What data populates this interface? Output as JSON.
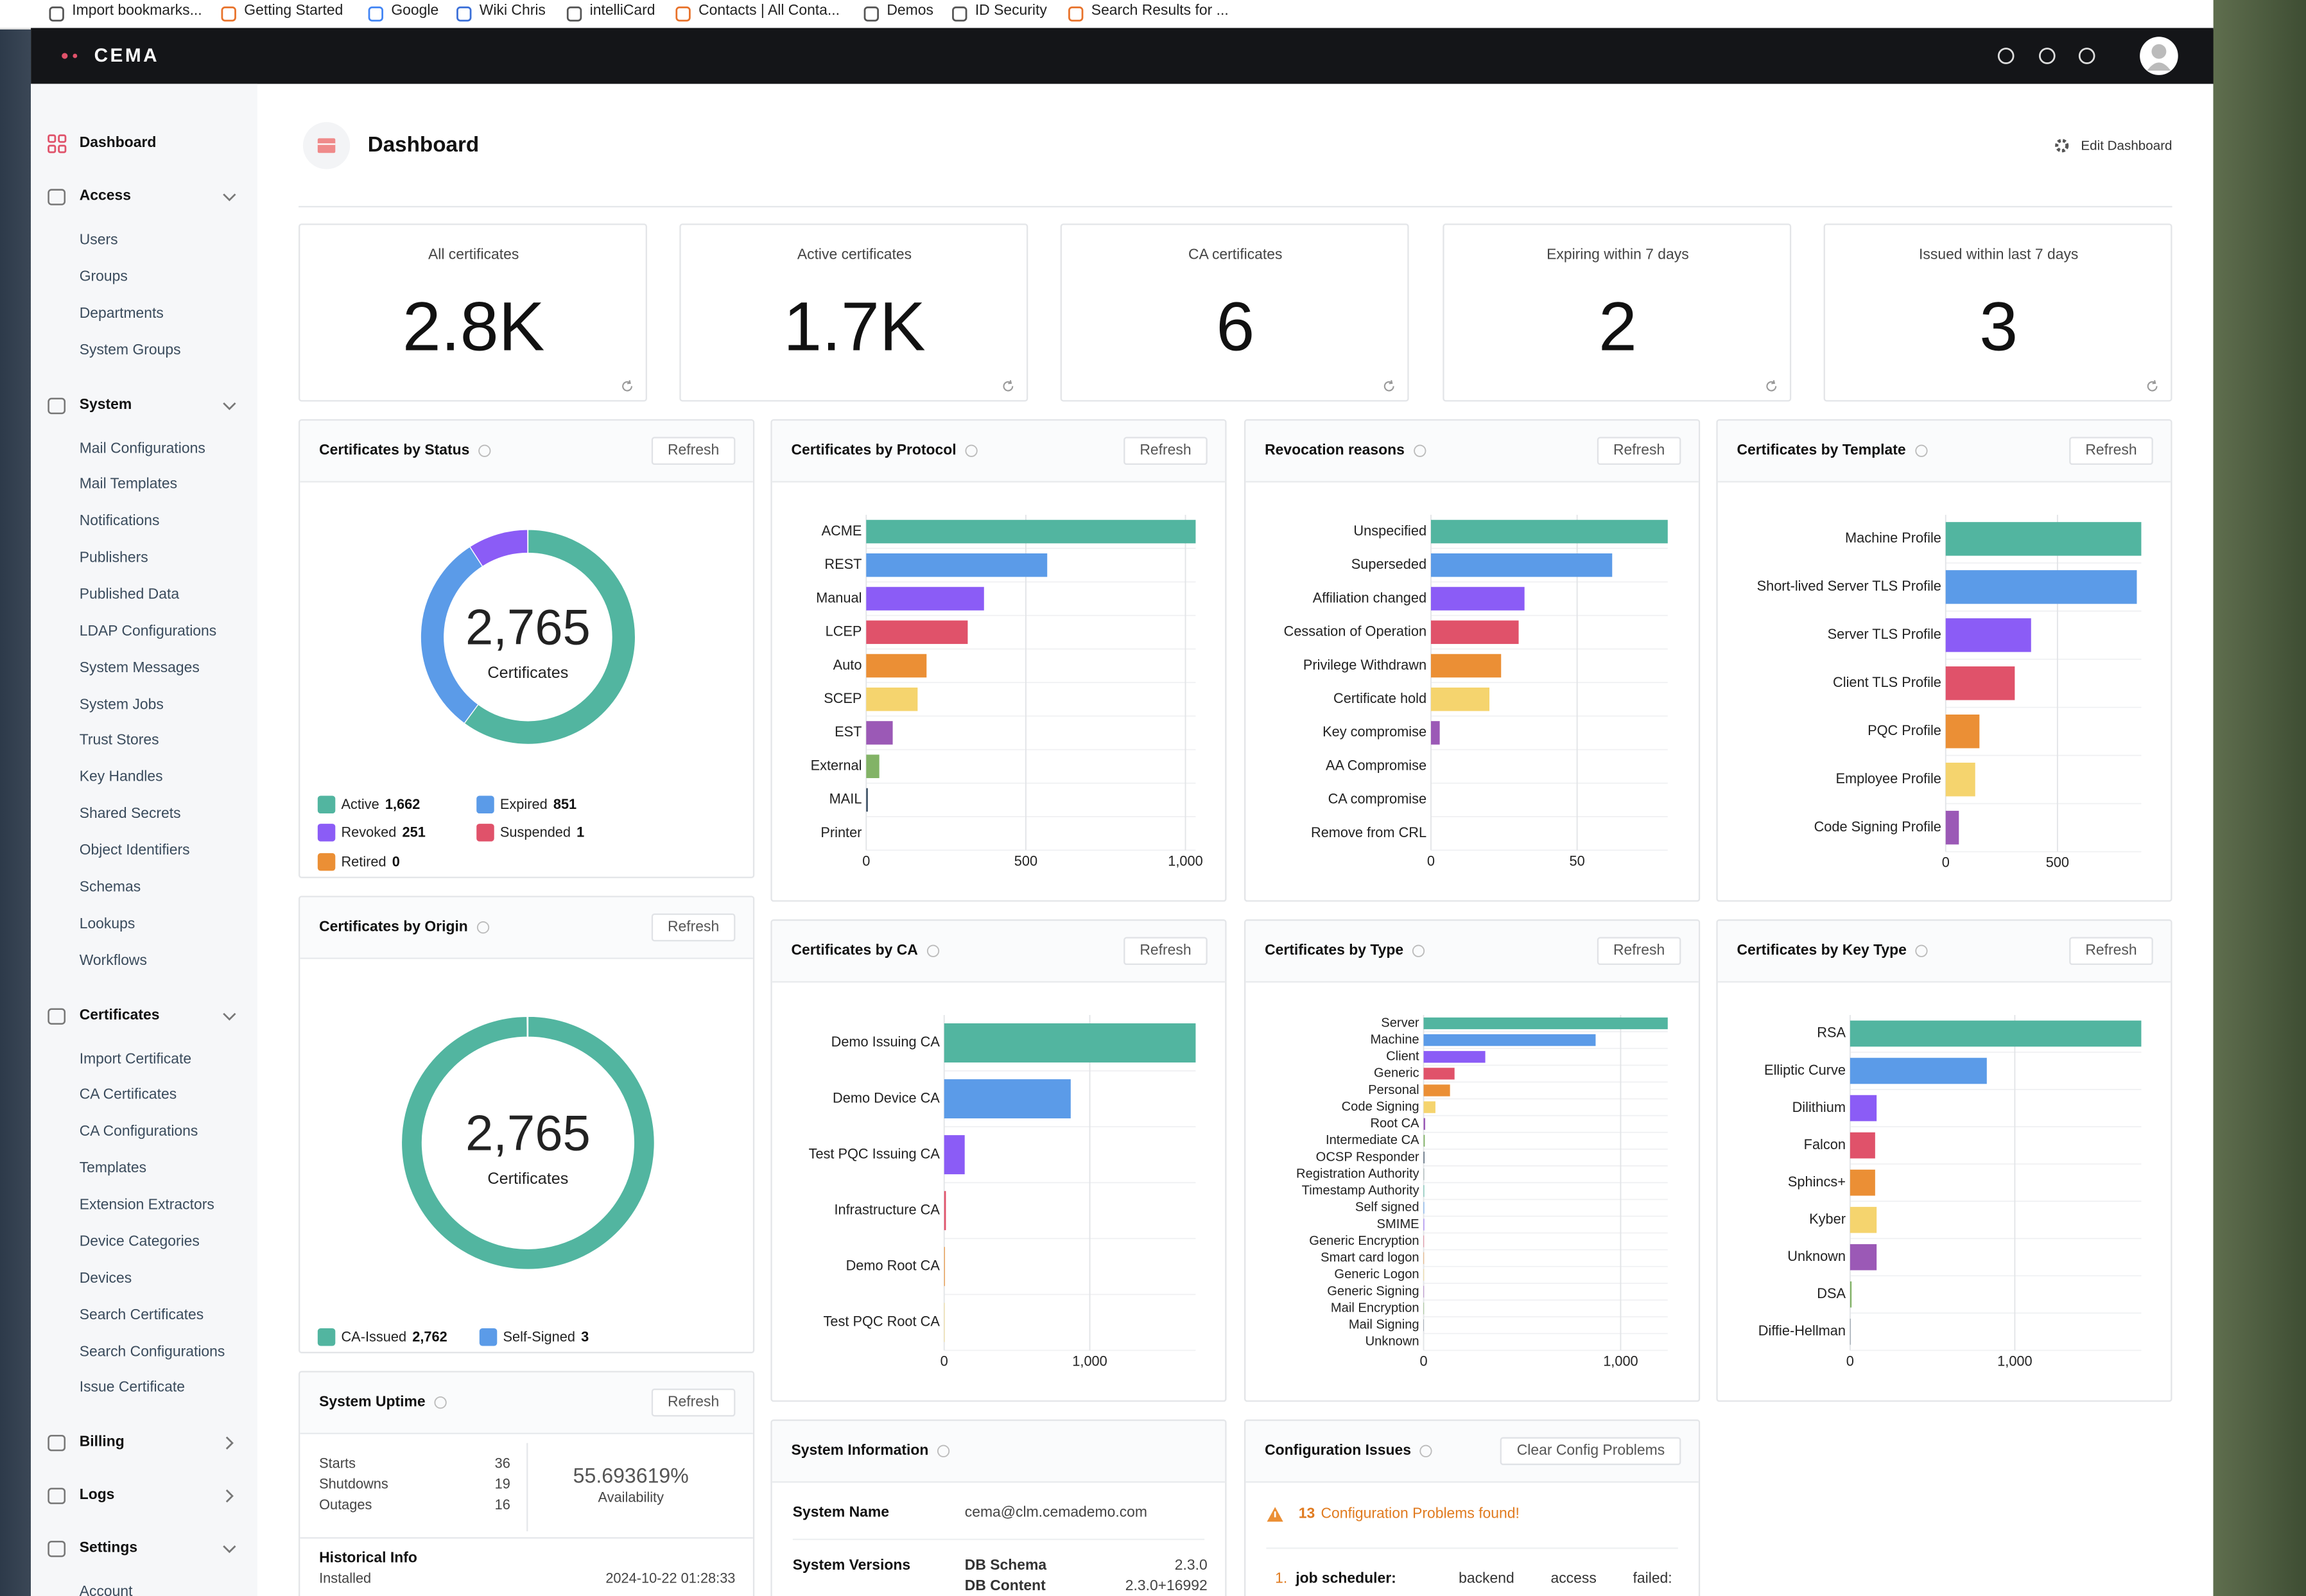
{
  "bookmarks": [
    "Import bookmarks...",
    "Getting Started",
    "Google",
    "Wiki Chris",
    "intelliCard",
    "Contacts | All Conta...",
    "Demos",
    "ID Security",
    "Search Results for ..."
  ],
  "app": {
    "brand": "CEMA"
  },
  "sidebar": {
    "home": "Dashboard",
    "sections": [
      {
        "title": "Access",
        "expanded": true,
        "items": [
          "Users",
          "Groups",
          "Departments",
          "System Groups"
        ]
      },
      {
        "title": "System",
        "expanded": true,
        "items": [
          "Mail Configurations",
          "Mail Templates",
          "Notifications",
          "Publishers",
          "Published Data",
          "LDAP Configurations",
          "System Messages",
          "System Jobs",
          "Trust Stores",
          "Key Handles",
          "Shared Secrets",
          "Object Identifiers",
          "Schemas",
          "Lookups",
          "Workflows"
        ]
      },
      {
        "title": "Certificates",
        "expanded": true,
        "items": [
          "Import Certificate",
          "CA Certificates",
          "CA Configurations",
          "Templates",
          "Extension Extractors",
          "Device Categories",
          "Devices",
          "Search Certificates",
          "Search Configurations",
          "Issue Certificate"
        ]
      },
      {
        "title": "Billing",
        "expanded": false,
        "items": []
      },
      {
        "title": "Logs",
        "expanded": false,
        "items": []
      },
      {
        "title": "Settings",
        "expanded": true,
        "items": [
          "Account"
        ]
      }
    ]
  },
  "header": {
    "title": "Dashboard",
    "edit": "Edit Dashboard"
  },
  "stats": [
    {
      "label": "All certificates",
      "value": "2.8K"
    },
    {
      "label": "Active certificates",
      "value": "1.7K"
    },
    {
      "label": "CA certificates",
      "value": 6
    },
    {
      "label": "Expiring within 7 days",
      "value": 2
    },
    {
      "label": "Issued within last 7 days",
      "value": 3
    }
  ],
  "refresh_label": "Refresh",
  "chart_data": [
    {
      "type": "pie",
      "title": "Certificates by Status",
      "categories": [
        "Active",
        "Expired",
        "Revoked",
        "Suspended",
        "Retired"
      ],
      "values": [
        1662,
        851,
        251,
        1,
        0
      ],
      "value_labels": [
        "1,662",
        "851",
        "251",
        "1",
        "0"
      ],
      "colors": [
        "#52b5a0",
        "#5b9be8",
        "#8b5cf6",
        "#e0526a",
        "#eb8f35"
      ],
      "total_label": "2,765",
      "center_text": "Certificates"
    },
    {
      "type": "bar",
      "title": "Certificates by Protocol",
      "categories": [
        "ACME",
        "REST",
        "Manual",
        "LCEP",
        "Auto",
        "SCEP",
        "EST",
        "External",
        "MAIL",
        "Printer"
      ],
      "values": [
        1032,
        567,
        369,
        318,
        189,
        161,
        83,
        41,
        5,
        0
      ],
      "colors": [
        "#52b5a0",
        "#5b9be8",
        "#8b5cf6",
        "#e0526a",
        "#eb8f35",
        "#f5d46e",
        "#9b59b6",
        "#82b366",
        "#34495e",
        "#95a5a6"
      ],
      "xlim": [
        0,
        1032
      ],
      "xticks": [
        0,
        500,
        {
          "value": 1000,
          "label": "1,000"
        }
      ],
      "grid": true
    },
    {
      "type": "bar",
      "title": "Revocation reasons",
      "categories": [
        "Unspecified",
        "Superseded",
        "Affiliation changed",
        "Cessation of Operation",
        "Privilege Withdrawn",
        "Certificate hold",
        "Key compromise",
        "AA Compromise",
        "CA compromise",
        "Remove from CRL"
      ],
      "values": [
        81,
        62,
        32,
        30,
        24,
        20,
        3,
        0,
        0,
        0
      ],
      "colors": [
        "#52b5a0",
        "#5b9be8",
        "#8b5cf6",
        "#e0526a",
        "#eb8f35",
        "#f5d46e",
        "#9b59b6",
        "#82b366",
        "#34495e",
        "#95a5a6"
      ],
      "xlim": [
        0,
        81
      ],
      "xticks": [
        0,
        50
      ],
      "grid": true
    },
    {
      "type": "bar",
      "title": "Certificates by Template",
      "categories": [
        "Machine Profile",
        "Short-lived Server TLS Profile",
        "Server TLS Profile",
        "Client TLS Profile",
        "PQC Profile",
        "Employee Profile",
        "Code Signing Profile"
      ],
      "values": [
        875,
        855,
        382,
        309,
        151,
        132,
        59
      ],
      "colors": [
        "#52b5a0",
        "#5b9be8",
        "#8b5cf6",
        "#e0526a",
        "#eb8f35",
        "#f5d46e",
        "#9b59b6"
      ],
      "xlim": [
        0,
        875
      ],
      "xticks": [
        0,
        500
      ],
      "grid": true
    },
    {
      "type": "pie",
      "title": "Certificates by Origin",
      "categories": [
        "CA-Issued",
        "Self-Signed"
      ],
      "values": [
        2762,
        3
      ],
      "value_labels": [
        "2,762",
        "3"
      ],
      "colors": [
        "#52b5a0",
        "#5b9be8"
      ],
      "total_label": "2,765",
      "center_text": "Certificates"
    },
    {
      "type": "bar",
      "title": "Certificates by CA",
      "categories": [
        "Demo Issuing CA",
        "Demo Device CA",
        "Test PQC Issuing CA",
        "Infrastructure CA",
        "Demo Root CA",
        "Test PQC Root CA"
      ],
      "values": [
        1727,
        869,
        141,
        12,
        5,
        3
      ],
      "colors": [
        "#52b5a0",
        "#5b9be8",
        "#8b5cf6",
        "#e0526a",
        "#eb8f35",
        "#f5d46e"
      ],
      "xlim": [
        0,
        1727
      ],
      "xticks": [
        0,
        {
          "value": 1000,
          "label": "1,000"
        }
      ],
      "grid": true
    },
    {
      "type": "bar",
      "title": "Certificates by Type",
      "categories": [
        "Server",
        "Machine",
        "Client",
        "Generic",
        "Personal",
        "Code Signing",
        "Root CA",
        "Intermediate CA",
        "OCSP Responder",
        "Registration Authority",
        "Timestamp Authority",
        "Self signed",
        "SMIME",
        "Generic Encryption",
        "Smart card logon",
        "Generic Logon",
        "Generic Signing",
        "Mail Encryption",
        "Mail Signing",
        "Unknown"
      ],
      "values": [
        1239,
        873,
        313,
        157,
        134,
        60,
        8,
        6,
        4,
        3,
        3,
        3,
        3,
        2,
        2,
        2,
        2,
        2,
        1,
        0
      ],
      "colors": [
        "#52b5a0",
        "#5b9be8",
        "#8b5cf6",
        "#e0526a",
        "#eb8f35",
        "#f5d46e",
        "#9b59b6",
        "#82b366",
        "#34495e",
        "#95a5a6",
        "#52b5a0",
        "#5b9be8",
        "#8b5cf6",
        "#e0526a",
        "#eb8f35",
        "#f5d46e",
        "#9b59b6",
        "#82b366",
        "#34495e",
        "#95a5a6"
      ],
      "xlim": [
        0,
        1239
      ],
      "xticks": [
        0,
        {
          "value": 1000,
          "label": "1,000"
        }
      ],
      "grid": true
    },
    {
      "type": "bar",
      "title": "Certificates by Key Type",
      "categories": [
        "RSA",
        "Elliptic Curve",
        "Dilithium",
        "Falcon",
        "Sphincs+",
        "Kyber",
        "Unknown",
        "DSA",
        "Diffie-Hellman"
      ],
      "values": [
        1768,
        830,
        161,
        152,
        152,
        161,
        161,
        9,
        2
      ],
      "colors": [
        "#52b5a0",
        "#5b9be8",
        "#8b5cf6",
        "#e0526a",
        "#eb8f35",
        "#f5d46e",
        "#9b59b6",
        "#82b366",
        "#34495e"
      ],
      "xlim": [
        0,
        1768
      ],
      "xticks": [
        0,
        {
          "value": 1000,
          "label": "1,000"
        }
      ],
      "grid": true
    }
  ],
  "uptime": {
    "title": "System Uptime",
    "rows": [
      {
        "label": "Starts",
        "value": 36
      },
      {
        "label": "Shutdowns",
        "value": 19
      },
      {
        "label": "Outages",
        "value": 16
      }
    ],
    "availability_value": "55.693619%",
    "availability_label": "Availability",
    "history_title": "Historical Info",
    "history": [
      {
        "label": "Installed",
        "value": "2024-10-22 01:28:33"
      }
    ]
  },
  "sysinfo": {
    "title": "System Information",
    "name_label": "System Name",
    "name_value": "cema@clm.cemademo.com",
    "versions_label": "System Versions",
    "versions": [
      {
        "label": "DB Schema",
        "value": "2.3.0"
      },
      {
        "label": "DB Content",
        "value": "2.3.0+16992"
      }
    ]
  },
  "config": {
    "title": "Configuration Issues",
    "button": "Clear Config Problems",
    "count": 13,
    "message": "Configuration Problems found!",
    "items": [
      {
        "number": "1.",
        "name": "job scheduler:",
        "text": "backend access failed:"
      }
    ]
  }
}
